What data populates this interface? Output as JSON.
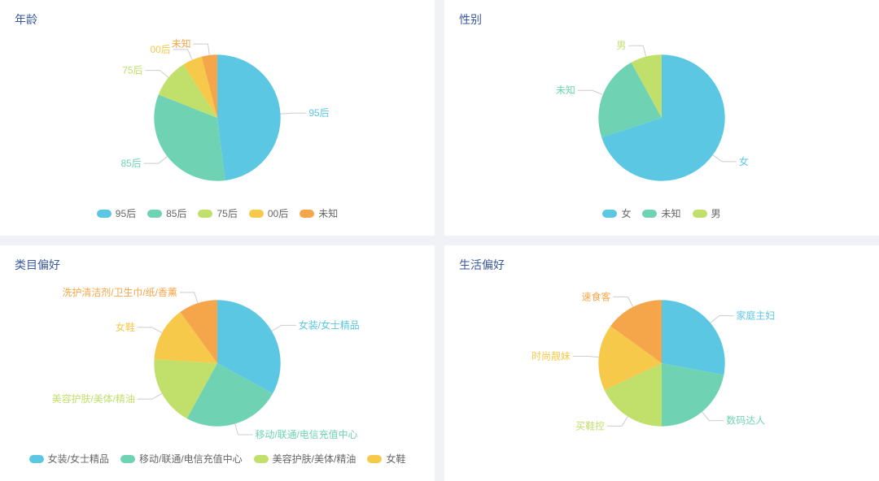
{
  "background_color": "#f0f2f5",
  "panel_background": "#ffffff",
  "title_color": "#3a5a9f",
  "label_leader_color": "#cccccc",
  "charts": [
    {
      "key": "age",
      "title": "年龄",
      "type": "pie",
      "radius": 78,
      "position": "top-left",
      "slices": [
        {
          "label": "95后",
          "value": 48,
          "color": "#5bc7e3"
        },
        {
          "label": "85后",
          "value": 33,
          "color": "#6fd3b3"
        },
        {
          "label": "75后",
          "value": 10,
          "color": "#c1df6b"
        },
        {
          "label": "00后",
          "value": 5,
          "color": "#f7c94a"
        },
        {
          "label": "未知",
          "value": 4,
          "color": "#f5a64a"
        }
      ],
      "legend_items": [
        {
          "label": "95后",
          "color": "#5bc7e3"
        },
        {
          "label": "85后",
          "color": "#6fd3b3"
        },
        {
          "label": "75后",
          "color": "#c1df6b"
        },
        {
          "label": "00后",
          "color": "#f7c94a"
        },
        {
          "label": "未知",
          "color": "#f5a64a"
        }
      ]
    },
    {
      "key": "gender",
      "title": "性别",
      "type": "pie",
      "radius": 78,
      "position": "top-right",
      "slices": [
        {
          "label": "女",
          "value": 70,
          "color": "#5bc7e3"
        },
        {
          "label": "未知",
          "value": 22,
          "color": "#6fd3b3"
        },
        {
          "label": "男",
          "value": 8,
          "color": "#c1df6b"
        }
      ],
      "legend_items": [
        {
          "label": "女",
          "color": "#5bc7e3"
        },
        {
          "label": "未知",
          "color": "#6fd3b3"
        },
        {
          "label": "男",
          "color": "#c1df6b"
        }
      ]
    },
    {
      "key": "category",
      "title": "类目偏好",
      "type": "pie",
      "radius": 78,
      "position": "bottom-left",
      "slices": [
        {
          "label": "女装/女士精品",
          "value": 33,
          "color": "#5bc7e3"
        },
        {
          "label": "移动/联通/电信充值中心",
          "value": 25,
          "color": "#6fd3b3"
        },
        {
          "label": "美容护肤/美体/精油",
          "value": 18,
          "color": "#c1df6b"
        },
        {
          "label": "女鞋",
          "value": 14,
          "color": "#f7c94a"
        },
        {
          "label": "洗护清洁剂/卫生巾/纸/香薰",
          "value": 10,
          "color": "#f5a64a"
        }
      ],
      "legend_items": [
        {
          "label": "女装/女士精品",
          "color": "#5bc7e3"
        },
        {
          "label": "移动/联通/电信充值中心",
          "color": "#6fd3b3"
        },
        {
          "label": "美容护肤/美体/精油",
          "color": "#c1df6b"
        },
        {
          "label": "女鞋",
          "color": "#f7c94a"
        }
      ]
    },
    {
      "key": "life",
      "title": "生活偏好",
      "type": "pie",
      "radius": 78,
      "position": "bottom-right",
      "slices": [
        {
          "label": "家庭主妇",
          "value": 28,
          "color": "#5bc7e3"
        },
        {
          "label": "数码达人",
          "value": 22,
          "color": "#6fd3b3"
        },
        {
          "label": "买鞋控",
          "value": 18,
          "color": "#c1df6b"
        },
        {
          "label": "时尚靓妹",
          "value": 17,
          "color": "#f7c94a"
        },
        {
          "label": "速食客",
          "value": 15,
          "color": "#f5a64a"
        }
      ],
      "legend_items": []
    }
  ]
}
